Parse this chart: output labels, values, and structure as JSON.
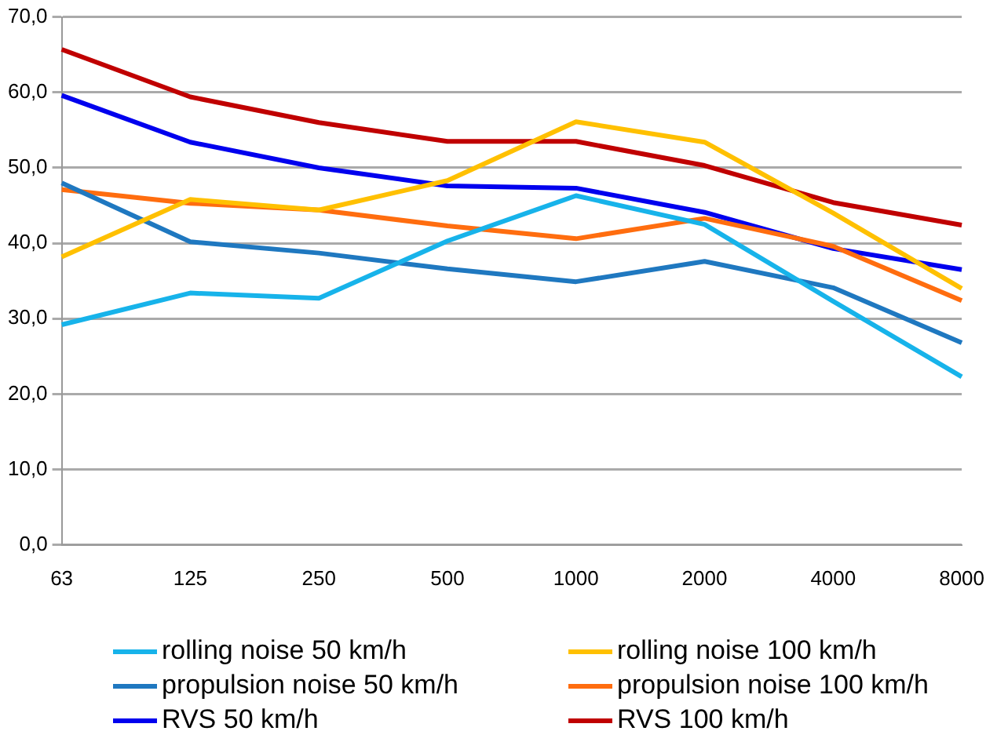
{
  "chart_data": {
    "type": "line",
    "categories": [
      "63",
      "125",
      "250",
      "500",
      "1000",
      "2000",
      "4000",
      "8000"
    ],
    "series": [
      {
        "name": "rolling noise 50 km/h",
        "color": "#17b3ea",
        "values": [
          29.2,
          33.4,
          32.7,
          40.3,
          46.3,
          42.5,
          32.3,
          22.3
        ]
      },
      {
        "name": "rolling noise 100 km/h",
        "color": "#ffc000",
        "values": [
          38.2,
          45.8,
          44.4,
          48.3,
          56.1,
          53.4,
          44.0,
          34.0
        ]
      },
      {
        "name": "propulsion noise 50 km/h",
        "color": "#1f78c0",
        "values": [
          48.0,
          40.2,
          38.7,
          36.6,
          34.9,
          37.6,
          34.1,
          26.8
        ]
      },
      {
        "name": "propulsion noise 100 km/h",
        "color": "#ff6d0f",
        "values": [
          47.1,
          45.3,
          44.4,
          42.3,
          40.6,
          43.3,
          39.6,
          32.4
        ]
      },
      {
        "name": "RVS 50 km/h",
        "color": "#0000ee",
        "values": [
          59.6,
          53.4,
          50.0,
          47.6,
          47.3,
          44.1,
          39.3,
          36.5
        ]
      },
      {
        "name": "RVS 100 km/h",
        "color": "#c00000",
        "values": [
          65.7,
          59.4,
          56.0,
          53.5,
          53.5,
          50.3,
          45.4,
          42.4
        ]
      }
    ],
    "ylim": [
      0,
      70
    ],
    "yticks": [
      {
        "value": 0,
        "label": "0,0"
      },
      {
        "value": 10,
        "label": "10,0"
      },
      {
        "value": 20,
        "label": "20,0"
      },
      {
        "value": 30,
        "label": "30,0"
      },
      {
        "value": 40,
        "label": "40,0"
      },
      {
        "value": 50,
        "label": "50,0"
      },
      {
        "value": 60,
        "label": "60,0"
      },
      {
        "value": 70,
        "label": "70,0"
      }
    ],
    "grid": "y",
    "legend": "bottom",
    "marker": "none",
    "line_style": "solid"
  }
}
